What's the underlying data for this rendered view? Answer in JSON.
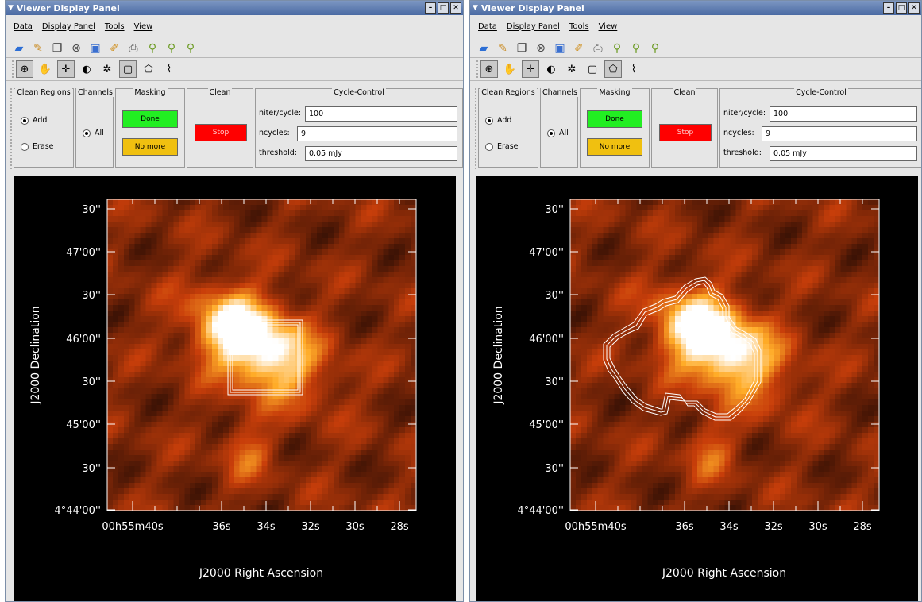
{
  "panels": [
    {
      "id": "left",
      "title": "Viewer Display Panel",
      "menu": [
        "Data",
        "Display Panel",
        "Tools",
        "View"
      ],
      "groups": {
        "clean_regions": {
          "label": "Clean Regions",
          "add": "Add",
          "erase": "Erase",
          "selected": "add"
        },
        "channels": {
          "label": "Channels",
          "all": "All"
        },
        "masking": {
          "label": "Masking",
          "done": "Done",
          "no_more": "No more"
        },
        "clean": {
          "label": "Clean",
          "stop": "Stop"
        },
        "cycle_control": {
          "label": "Cycle-Control",
          "niter_label": "niter/cycle:",
          "niter": "100",
          "ncycles_label": "ncycles:",
          "ncycles": "9",
          "threshold_label": "threshold:",
          "threshold": "0.05 mJy"
        }
      },
      "mask": "box",
      "axes": {
        "ylabel": "J2000 Declination",
        "xlabel": "J2000 Right Ascension",
        "y_ticks": [
          {
            "label": "30''",
            "minutes": ""
          },
          {
            "label": "47'00''",
            "minutes": ""
          },
          {
            "label": "30''",
            "minutes": ""
          },
          {
            "label": "46'00''",
            "minutes": ""
          },
          {
            "label": "30''",
            "minutes": ""
          },
          {
            "label": "45'00''",
            "minutes": ""
          },
          {
            "label": "30''",
            "minutes": ""
          },
          {
            "label": "4°44'00''",
            "minutes": ""
          }
        ],
        "x_ticks": [
          "00h55m40s",
          "36s",
          "34s",
          "32s",
          "30s",
          "28s"
        ]
      }
    },
    {
      "id": "right",
      "title": "Viewer Display Panel",
      "menu": [
        "Data",
        "Display Panel",
        "Tools",
        "View"
      ],
      "groups": {
        "clean_regions": {
          "label": "Clean Regions",
          "add": "Add",
          "erase": "Erase",
          "selected": "add"
        },
        "channels": {
          "label": "Channels",
          "all": "All"
        },
        "masking": {
          "label": "Masking",
          "done": "Done",
          "no_more": "No more"
        },
        "clean": {
          "label": "Clean",
          "stop": "Stop"
        },
        "cycle_control": {
          "label": "Cycle-Control",
          "niter_label": "niter/cycle:",
          "niter": "100",
          "ncycles_label": "ncycles:",
          "ncycles": "9",
          "threshold_label": "threshold:",
          "threshold": "0.05 mJy"
        }
      },
      "mask": "contour",
      "axes": {
        "ylabel": "J2000 Declination",
        "xlabel": "J2000 Right Ascension",
        "y_ticks": [
          {
            "label": "30''"
          },
          {
            "label": "47'00''"
          },
          {
            "label": "30''"
          },
          {
            "label": "46'00''"
          },
          {
            "label": "30''"
          },
          {
            "label": "45'00''"
          },
          {
            "label": "30''"
          },
          {
            "label": "4°44'00''"
          }
        ],
        "x_ticks": [
          "00h55m40s",
          "36s",
          "34s",
          "32s",
          "30s",
          "28s"
        ]
      }
    }
  ],
  "toolbar_icons": [
    "open-folder-icon",
    "wrench-icon",
    "copy-icon",
    "close-circle-icon",
    "new-panel-icon",
    "adjust-icon",
    "print-icon",
    "zoom-icon",
    "zoom-in-icon",
    "zoom-out-icon"
  ],
  "mouse_tools": [
    "zoom-tool-icon",
    "pan-tool-icon",
    "crosshair-tool-icon",
    "contrast-tool-icon",
    "colormap-tool-icon",
    "rectangle-region-icon",
    "polygon-region-icon",
    "polyline-icon"
  ],
  "colors": {
    "mask": "#ffffff",
    "image_peak": "#ffffff",
    "image_mid": "#ff7a10",
    "image_low": "#3a1205"
  }
}
